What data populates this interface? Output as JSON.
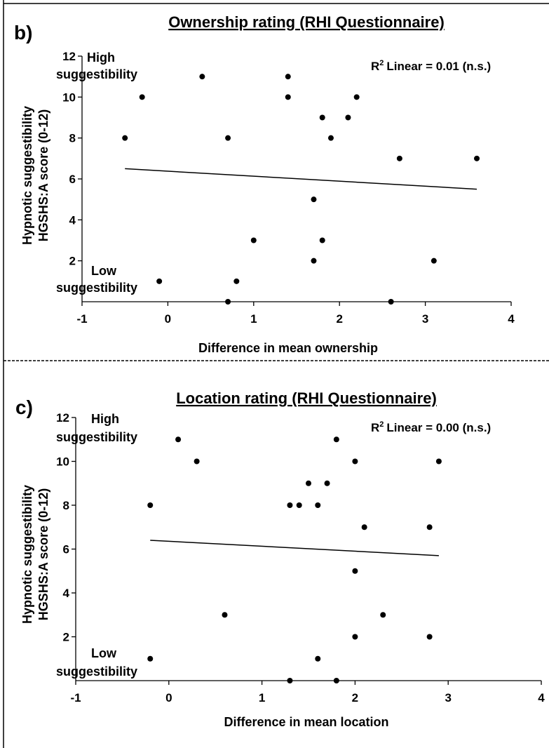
{
  "chart_data": [
    {
      "type": "scatter",
      "panel_label": "b)",
      "title": "Ownership rating (RHI Questionnaire)",
      "xlabel": "Difference in mean ownership",
      "ylabel_lines": [
        "Hypnotic suggestibility",
        "HGSHS:A score (0-12)"
      ],
      "xlim": [
        -1,
        4
      ],
      "ylim": [
        0,
        12
      ],
      "xticks": [
        -1,
        0,
        1,
        2,
        3,
        4
      ],
      "yticks": [
        2,
        4,
        6,
        8,
        10,
        12
      ],
      "high_label": [
        "High",
        "suggestibility"
      ],
      "low_label": [
        "Low",
        "suggestibility"
      ],
      "r2_label": "Linear = 0.01 (n.s.)",
      "r2_prefix": "R",
      "r2_sup": "2",
      "fit_line": {
        "x": [
          -0.5,
          3.6
        ],
        "y": [
          6.5,
          5.5
        ]
      },
      "points": [
        {
          "x": -0.5,
          "y": 8
        },
        {
          "x": -0.3,
          "y": 10
        },
        {
          "x": -0.1,
          "y": 1
        },
        {
          "x": 0.4,
          "y": 11
        },
        {
          "x": 0.7,
          "y": 8
        },
        {
          "x": 0.7,
          "y": 0
        },
        {
          "x": 0.8,
          "y": 1
        },
        {
          "x": 1.0,
          "y": 3
        },
        {
          "x": 1.4,
          "y": 11
        },
        {
          "x": 1.4,
          "y": 10
        },
        {
          "x": 1.7,
          "y": 5
        },
        {
          "x": 1.7,
          "y": 2
        },
        {
          "x": 1.8,
          "y": 9
        },
        {
          "x": 1.8,
          "y": 3
        },
        {
          "x": 1.9,
          "y": 8
        },
        {
          "x": 2.1,
          "y": 9
        },
        {
          "x": 2.2,
          "y": 10
        },
        {
          "x": 2.6,
          "y": 0
        },
        {
          "x": 2.7,
          "y": 7
        },
        {
          "x": 3.1,
          "y": 2
        },
        {
          "x": 3.6,
          "y": 7
        }
      ]
    },
    {
      "type": "scatter",
      "panel_label": "c)",
      "title": "Location rating (RHI Questionnaire)",
      "xlabel": "Difference in mean location",
      "ylabel_lines": [
        "Hypnotic suggestibility",
        "HGSHS:A score (0-12)"
      ],
      "xlim": [
        -1,
        4
      ],
      "ylim": [
        0,
        12
      ],
      "xticks": [
        -1,
        0,
        1,
        2,
        3,
        4
      ],
      "yticks": [
        2,
        4,
        6,
        8,
        10,
        12
      ],
      "high_label": [
        "High",
        "suggestibility"
      ],
      "low_label": [
        "Low",
        "suggestibility"
      ],
      "r2_label": "Linear = 0.00 (n.s.)",
      "r2_prefix": "R",
      "r2_sup": "2",
      "fit_line": {
        "x": [
          -0.2,
          2.9
        ],
        "y": [
          6.4,
          5.7
        ]
      },
      "points": [
        {
          "x": -0.2,
          "y": 8
        },
        {
          "x": -0.2,
          "y": 1
        },
        {
          "x": 0.1,
          "y": 11
        },
        {
          "x": 0.3,
          "y": 10
        },
        {
          "x": 0.6,
          "y": 3
        },
        {
          "x": 1.3,
          "y": 8
        },
        {
          "x": 1.3,
          "y": 0
        },
        {
          "x": 1.4,
          "y": 8
        },
        {
          "x": 1.5,
          "y": 9
        },
        {
          "x": 1.6,
          "y": 8
        },
        {
          "x": 1.6,
          "y": 1
        },
        {
          "x": 1.7,
          "y": 9
        },
        {
          "x": 1.8,
          "y": 11
        },
        {
          "x": 1.8,
          "y": 0
        },
        {
          "x": 2.0,
          "y": 10
        },
        {
          "x": 2.0,
          "y": 5
        },
        {
          "x": 2.0,
          "y": 2
        },
        {
          "x": 2.1,
          "y": 7
        },
        {
          "x": 2.3,
          "y": 3
        },
        {
          "x": 2.8,
          "y": 7
        },
        {
          "x": 2.8,
          "y": 2
        },
        {
          "x": 2.9,
          "y": 10
        }
      ]
    }
  ]
}
